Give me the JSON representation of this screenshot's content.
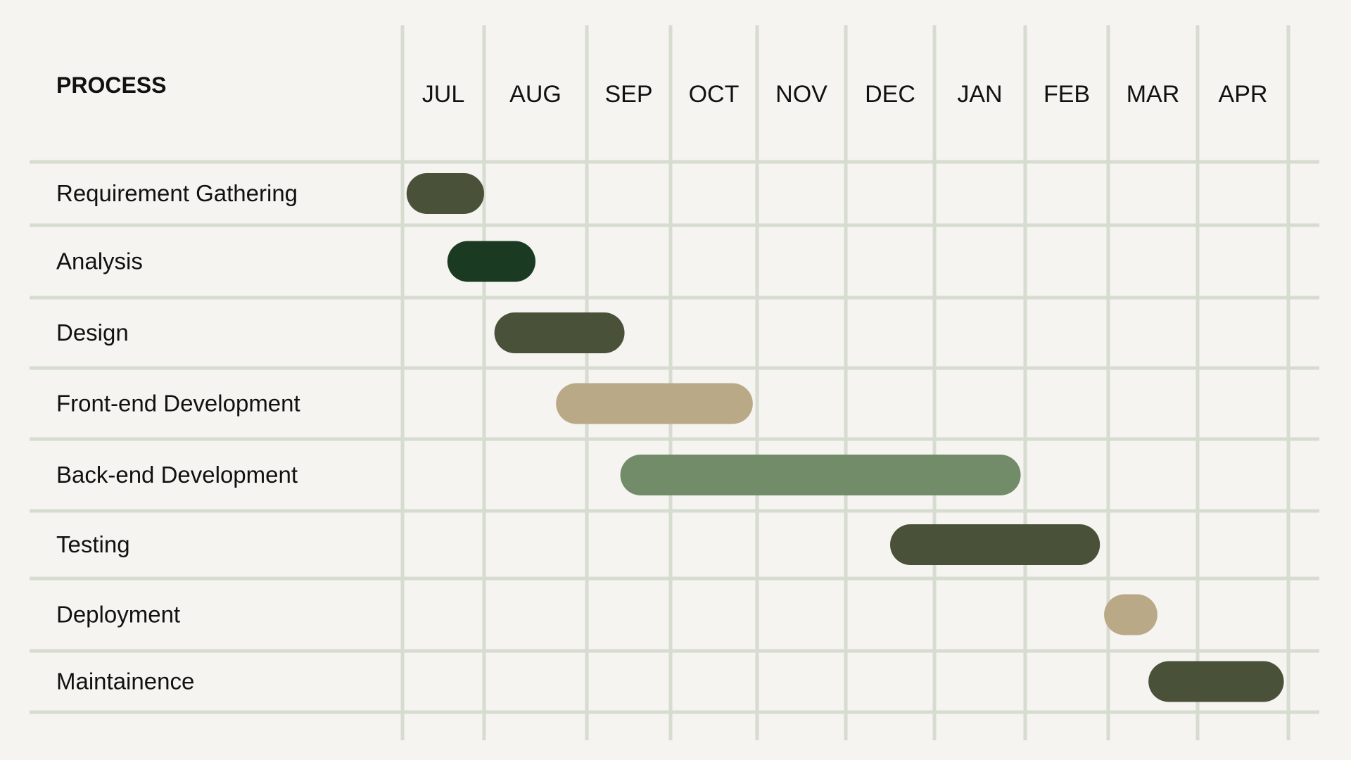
{
  "header": {
    "process_label": "PROCESS"
  },
  "colors": {
    "background": "#f5f4f1",
    "grid": "#d6dcd0",
    "text": "#111111",
    "dark_olive": "#4a5139",
    "dark_green": "#1b3a22",
    "sand": "#b9a986",
    "sage": "#728b68"
  },
  "chart_data": {
    "type": "gantt",
    "title": "",
    "xlabel": "",
    "ylabel": "PROCESS",
    "months": [
      "JUL",
      "AUG",
      "SEP",
      "OCT",
      "NOV",
      "DEC",
      "JAN",
      "FEB",
      "MAR",
      "APR"
    ],
    "grid": true,
    "tasks": [
      {
        "name": "Requirement Gathering",
        "start": 0.05,
        "end": 1.0,
        "color": "#4a5139"
      },
      {
        "name": "Analysis",
        "start": 0.55,
        "end": 1.5,
        "color": "#1b3a22"
      },
      {
        "name": "Design",
        "start": 1.1,
        "end": 2.45,
        "color": "#4a5139"
      },
      {
        "name": "Front-end Development",
        "start": 1.7,
        "end": 3.95,
        "color": "#b9a986"
      },
      {
        "name": "Back-end Development",
        "start": 2.4,
        "end": 6.95,
        "color": "#728b68"
      },
      {
        "name": "Testing",
        "start": 5.5,
        "end": 7.9,
        "color": "#4a5139"
      },
      {
        "name": "Deployment",
        "start": 7.95,
        "end": 8.55,
        "color": "#b9a986"
      },
      {
        "name": "Maintainence",
        "start": 8.45,
        "end": 9.95,
        "color": "#4a5139"
      }
    ]
  }
}
